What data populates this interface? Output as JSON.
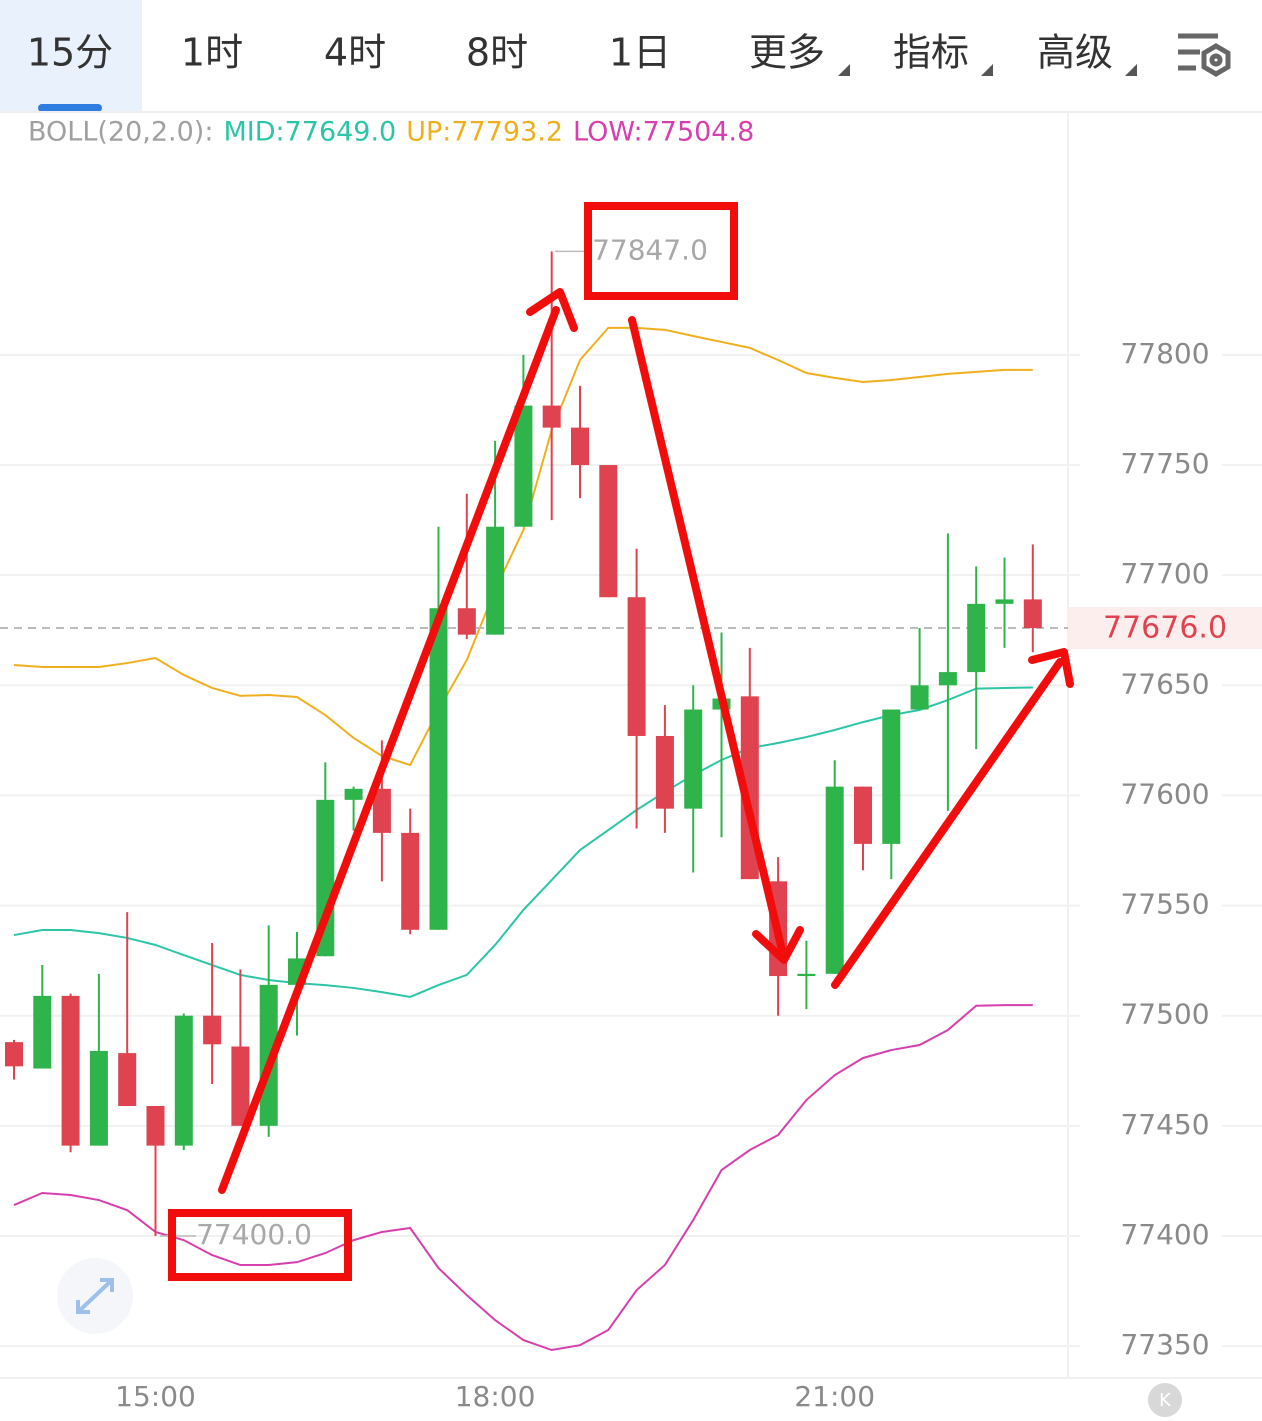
{
  "tabs": [
    "15分",
    "1时",
    "4时",
    "8时",
    "1日",
    "更多",
    "指标",
    "高级"
  ],
  "chart_data": {
    "type": "candlestick",
    "indicator": "BOLL(20,2.0):",
    "categories": [
      null,
      null,
      null,
      null,
      null,
      "15:00",
      null,
      null,
      null,
      null,
      null,
      null,
      null,
      null,
      null,
      null,
      null,
      "18:00",
      null,
      null,
      null,
      null,
      null,
      null,
      null,
      null,
      null,
      null,
      null,
      "21:00",
      null,
      null,
      null,
      null,
      null,
      null,
      null
    ],
    "open": [
      77488,
      77476,
      77509,
      77441,
      77483,
      77459,
      77441,
      77500,
      77486,
      77450,
      77514,
      77527,
      77598,
      77603,
      77583,
      77539,
      77685,
      77673,
      77722,
      77777,
      77767,
      77750,
      77690,
      77627,
      77594,
      77639,
      77645,
      77561,
      77518,
      77519,
      77604,
      77578,
      77639,
      77650,
      77656,
      77687,
      77689
    ],
    "high": [
      77489,
      77523,
      77510,
      77519,
      77547,
      77459,
      77501,
      77533,
      77521,
      77541,
      77538,
      77615,
      77604,
      77625,
      77594,
      77722,
      77737,
      77761,
      77800,
      77847,
      77786,
      77750,
      77712,
      77641,
      77650,
      77674,
      77667,
      77572,
      77534,
      77616,
      77604,
      77639,
      77676,
      77719,
      77704,
      77708,
      77714
    ],
    "low": [
      77471,
      77476,
      77438,
      77441,
      77459,
      77400,
      77439,
      77469,
      77450,
      77445,
      77491,
      77527,
      77584,
      77561,
      77537,
      77539,
      77671,
      77673,
      77722,
      77725,
      77735,
      77690,
      77585,
      77583,
      77565,
      77581,
      77562,
      77500,
      77503,
      77519,
      77566,
      77562,
      77639,
      77593,
      77621,
      77667,
      77665
    ],
    "close": [
      77477,
      77509,
      77441,
      77484,
      77459,
      77441,
      77500,
      77487,
      77450,
      77514,
      77526,
      77598,
      77603,
      77583,
      77539,
      77685,
      77673,
      77722,
      77777,
      77767,
      77750,
      77690,
      77627,
      77594,
      77639,
      77644,
      77562,
      77518,
      77519,
      77604,
      77578,
      77639,
      77650,
      77656,
      77687,
      77689,
      77676
    ],
    "up_color": "#2fb44c",
    "down_color": "#e04350",
    "series": [
      {
        "name": "MID:77649.0",
        "color": "#2cc5a6",
        "values": [
          77536.6,
          77538.9,
          77538.9,
          77537.5,
          77535.3,
          77532.1,
          77527.5,
          77523.0,
          77518.5,
          77516.2,
          77514.8,
          77513.9,
          77512.6,
          77510.7,
          77508.5,
          77513.9,
          77518.5,
          77532.1,
          77548.0,
          77561.6,
          77575.2,
          77584.3,
          77593.4,
          77601.6,
          77609.3,
          77616.1,
          77621.5,
          77623.8,
          77626.5,
          77629.7,
          77633.3,
          77636.5,
          77638.8,
          77643.3,
          77648.5,
          77648.8,
          77649.0
        ]
      },
      {
        "name": "UP:77793.2",
        "color": "#f0b01e",
        "values": [
          77659.2,
          77658.3,
          77658.3,
          77658.3,
          77660.1,
          77662.4,
          77654.7,
          77648.8,
          77645.2,
          77645.6,
          77644.7,
          77636.5,
          77626.1,
          77617.9,
          77613.8,
          77638.8,
          77661.5,
          77693.3,
          77720.5,
          77765.9,
          77797.7,
          77812.3,
          77812.3,
          77811.4,
          77808.6,
          77805.9,
          77803.2,
          77797.7,
          77791.8,
          77789.6,
          77787.7,
          77788.6,
          77790.0,
          77791.4,
          77792.3,
          77793.2,
          77793.2
        ]
      },
      {
        "name": "LOW:77504.8",
        "color": "#d63fae",
        "values": [
          77414.0,
          77419.5,
          77418.6,
          77416.3,
          77411.7,
          77401.8,
          77398.1,
          77391.3,
          77386.8,
          77386.8,
          77388.1,
          77392.2,
          77398.1,
          77401.8,
          77403.6,
          77385.4,
          77373.1,
          77361.8,
          77352.7,
          77348.2,
          77350.4,
          77357.3,
          77375.4,
          77386.8,
          77407.2,
          77429.9,
          77439.0,
          77445.8,
          77461.7,
          77473.0,
          77480.8,
          77484.4,
          77486.7,
          77493.5,
          77504.5,
          77504.8,
          77504.8
        ]
      }
    ],
    "ylim": [
      77335.5,
      77910.3
    ],
    "yticks": [
      77350,
      77400,
      77450,
      77500,
      77550,
      77600,
      77650,
      77700,
      77750,
      77800
    ],
    "grid": true,
    "annotations": [
      {
        "value": 77847,
        "label": "77847.0"
      },
      {
        "value": 77400,
        "label": "77400.0"
      }
    ],
    "last_price": {
      "value": 77676,
      "label": "77676.0"
    }
  }
}
